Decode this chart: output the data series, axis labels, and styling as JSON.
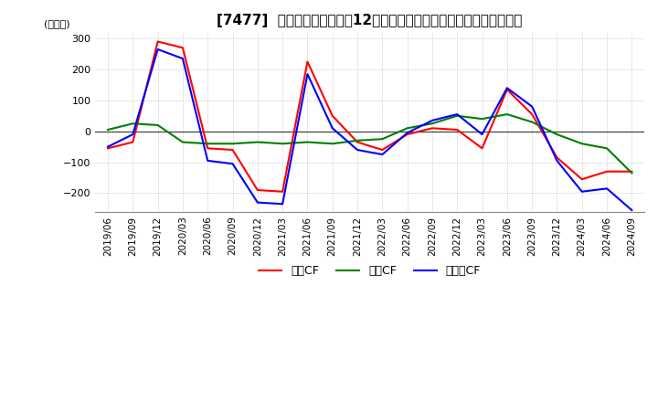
{
  "title": "[7477]  キャッシュフローの12か月移動合計の対前年同期増減額の推移",
  "ylabel": "(百万円)",
  "ylim": [
    -260,
    320
  ],
  "yticks": [
    -200,
    -100,
    0,
    100,
    200,
    300
  ],
  "legend_labels": [
    "営業CF",
    "投資CF",
    "フリーCF"
  ],
  "line_colors": [
    "#ff0000",
    "#008000",
    "#0000ff"
  ],
  "dates": [
    "2019/06",
    "2019/09",
    "2019/12",
    "2020/03",
    "2020/06",
    "2020/09",
    "2020/12",
    "2021/03",
    "2021/06",
    "2021/09",
    "2021/12",
    "2022/03",
    "2022/06",
    "2022/09",
    "2022/12",
    "2023/03",
    "2023/06",
    "2023/09",
    "2023/12",
    "2024/03",
    "2024/06",
    "2024/09"
  ],
  "operating_cf": [
    -55,
    -35,
    290,
    270,
    -55,
    -60,
    -190,
    -195,
    225,
    50,
    -35,
    -60,
    -10,
    10,
    5,
    -55,
    135,
    55,
    -85,
    -155,
    -130,
    -130
  ],
  "investing_cf": [
    5,
    25,
    20,
    -35,
    -40,
    -40,
    -35,
    -40,
    -35,
    -40,
    -30,
    -25,
    10,
    25,
    50,
    40,
    55,
    30,
    -10,
    -40,
    -55,
    -135
  ],
  "free_cf": [
    -50,
    -10,
    265,
    235,
    -95,
    -105,
    -230,
    -235,
    185,
    10,
    -60,
    -75,
    -5,
    35,
    55,
    -10,
    140,
    80,
    -95,
    -195,
    -185,
    -255
  ],
  "background_color": "#ffffff",
  "grid_color": "#aaaaaa",
  "title_fontsize": 11,
  "axis_fontsize": 8,
  "legend_fontsize": 9
}
